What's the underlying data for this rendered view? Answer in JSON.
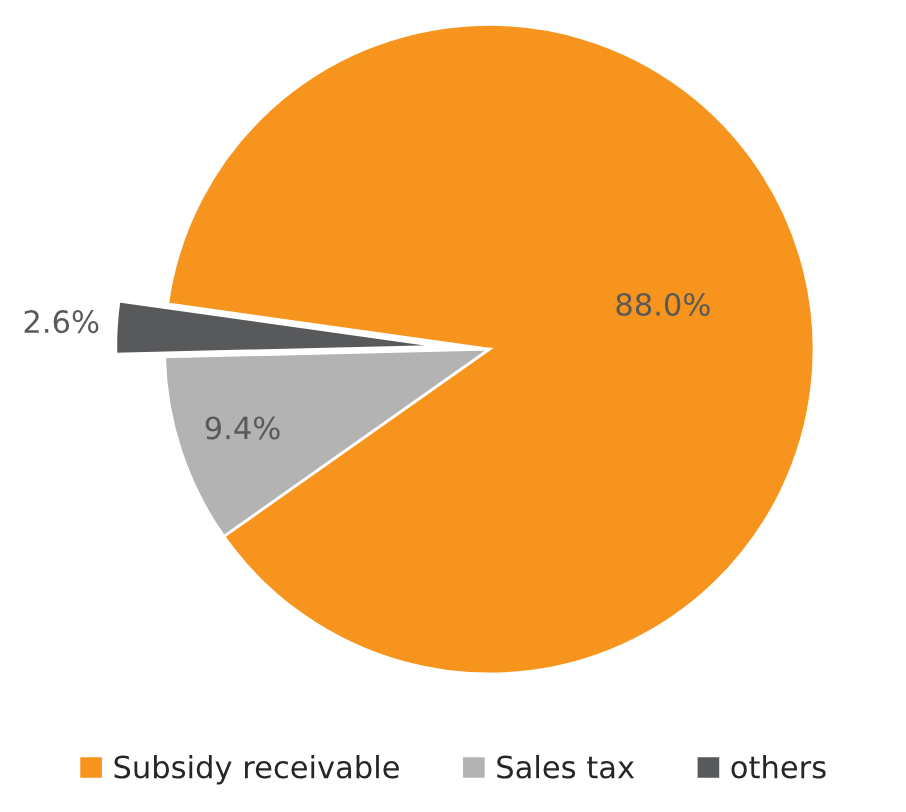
{
  "chart_data": {
    "type": "pie",
    "categories": [
      "Subsidy receivable",
      "Sales tax",
      "others"
    ],
    "values": [
      88.0,
      9.4,
      2.6
    ],
    "colors": [
      "#f7941d",
      "#b3b3b3",
      "#58595b"
    ],
    "value_labels": [
      "88.0%",
      "9.4%",
      "2.6%"
    ],
    "legend": "bottom"
  }
}
